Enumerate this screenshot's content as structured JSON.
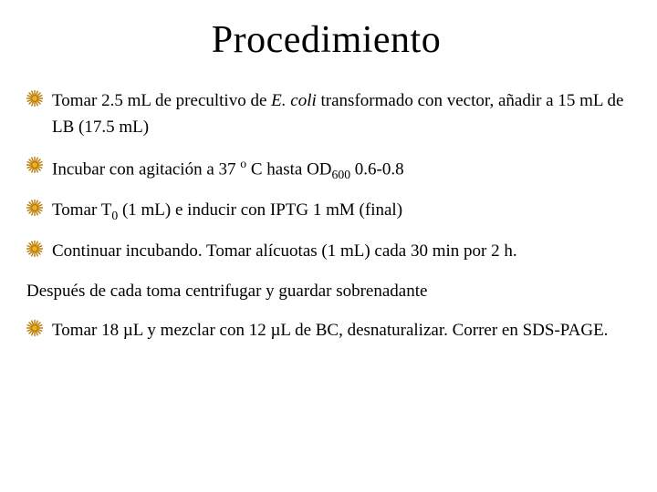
{
  "title": "Procedimiento",
  "bullet_color": "#f0b020",
  "bullet_stroke": "#b87a00",
  "text_color": "#000000",
  "background_color": "#ffffff",
  "title_fontsize": 42,
  "body_fontsize": 19,
  "items": [
    {
      "type": "bullet",
      "html": "Tomar 2.5 mL de precultivo de <span class=\"italic\">E. coli</span>  transformado con vector, añadir a 15 mL de LB (17.5 mL)"
    },
    {
      "type": "bullet",
      "html": "Incubar con agitación a 37 <span class=\"sup\">o</span> C hasta OD<span class=\"sub\">600</span> 0.6-0.8"
    },
    {
      "type": "bullet",
      "html": "Tomar T<span class=\"sub\">0</span> (1 mL) e inducir  con IPTG 1 mM (final)"
    },
    {
      "type": "bullet",
      "html": "Continuar incubando. Tomar alícuotas (1 mL) cada 30 min por 2 h."
    },
    {
      "type": "plain",
      "html": "Después de cada toma centrifugar y guardar sobrenadante"
    },
    {
      "type": "bullet",
      "html": "Tomar 18 µL y mezclar con 12 µL de BC, desnaturalizar. Correr en SDS-PAGE."
    }
  ]
}
